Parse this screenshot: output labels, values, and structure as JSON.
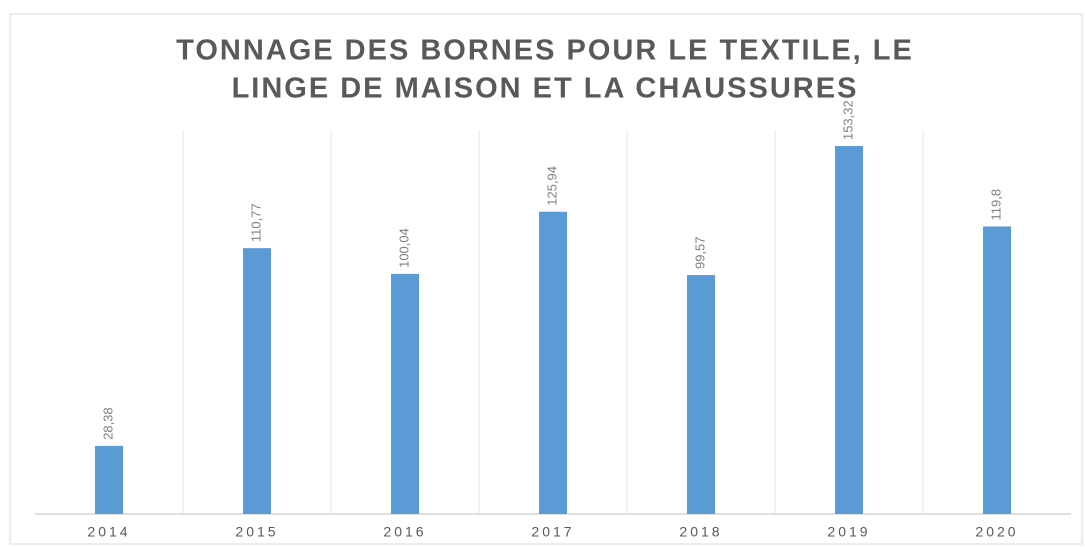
{
  "chart_data": {
    "type": "bar",
    "title": [
      "TONNAGE DES BORNES POUR LE TEXTILE, LE",
      "LINGE DE MAISON ET LA CHAUSSURES"
    ],
    "categories": [
      "2014",
      "2015",
      "2016",
      "2017",
      "2018",
      "2019",
      "2020"
    ],
    "values": [
      28.38,
      110.77,
      100.04,
      125.94,
      99.57,
      153.32,
      119.8
    ],
    "value_labels": [
      "28,38",
      "110,77",
      "100,04",
      "125,94",
      "99,57",
      "153,32",
      "119,8"
    ],
    "color": "#5b9bd5",
    "ylim": [
      0,
      160
    ]
  }
}
